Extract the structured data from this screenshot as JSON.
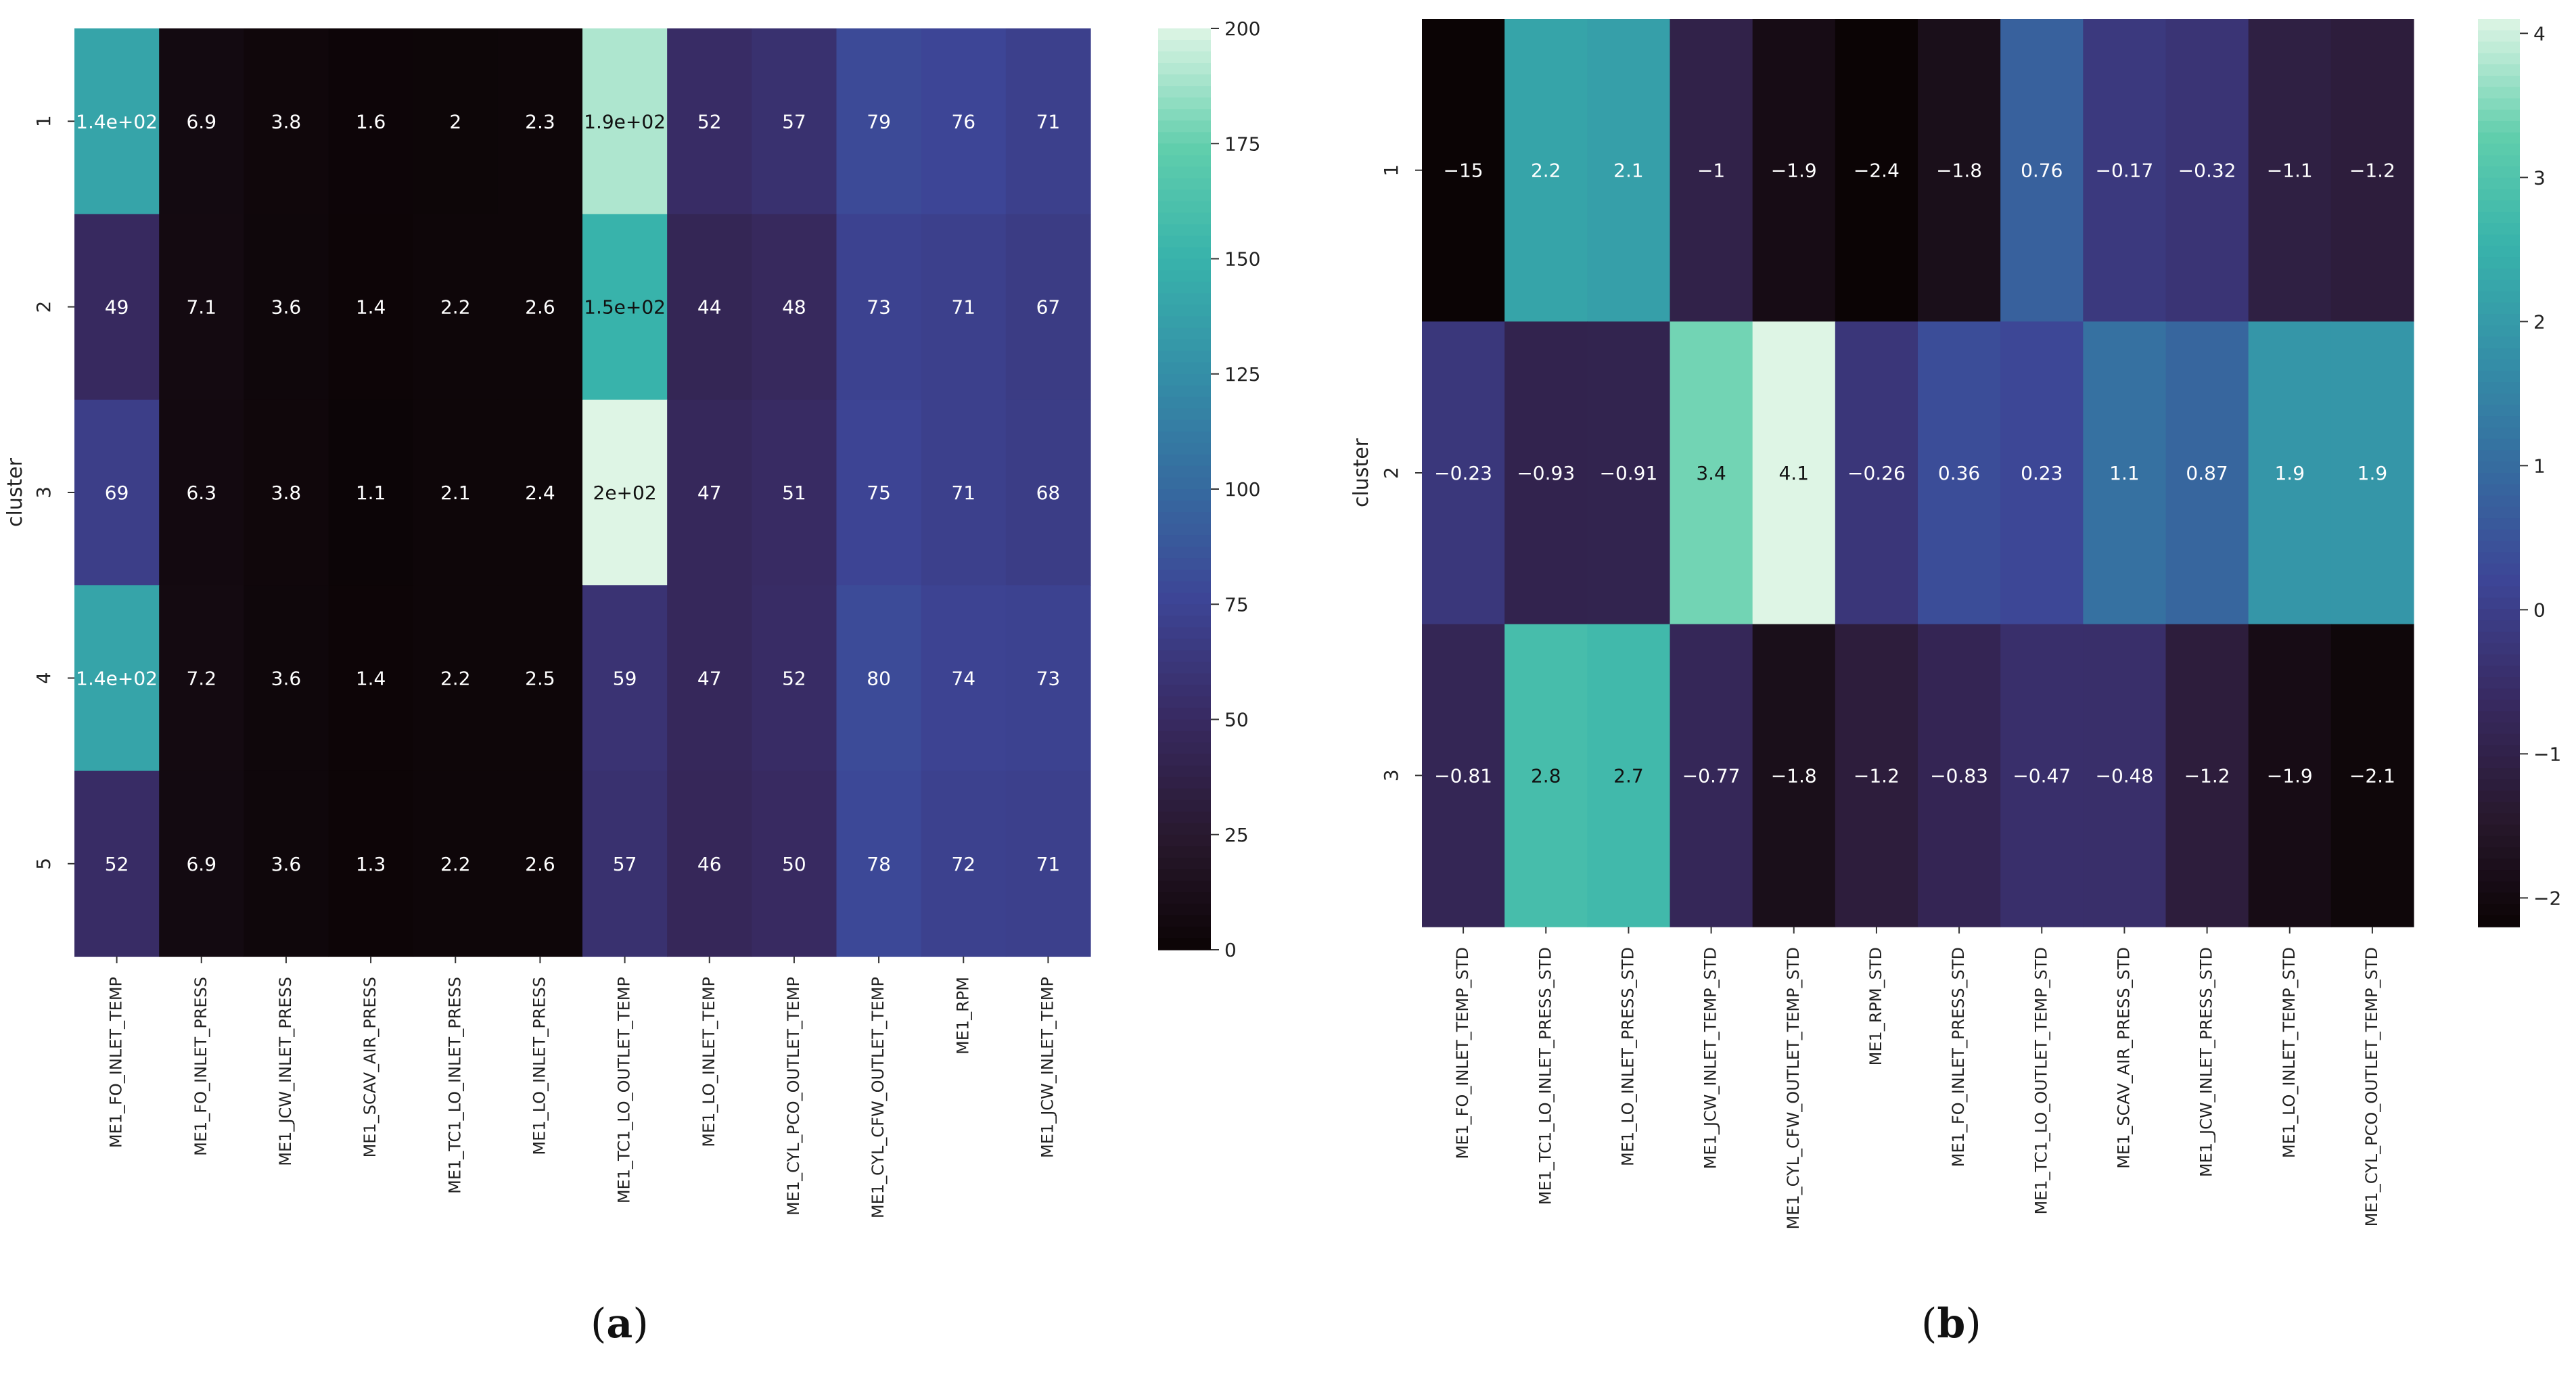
{
  "panels": {
    "a": {
      "open": "(",
      "letter": "a",
      "close": ")"
    },
    "b": {
      "open": "(",
      "letter": "b",
      "close": ")"
    }
  },
  "chart_data": [
    {
      "type": "heatmap",
      "ylabel": "cluster",
      "rows": [
        "1",
        "2",
        "3",
        "4",
        "5"
      ],
      "columns": [
        "ME1_FO_INLET_TEMP",
        "ME1_FO_INLET_PRESS",
        "ME1_JCW_INLET_PRESS",
        "ME1_SCAV_AIR_PRESS",
        "ME1_TC1_LO_INLET_PRESS",
        "ME1_LO_INLET_PRESS",
        "ME1_TC1_LO_OUTLET_TEMP",
        "ME1_LO_INLET_TEMP",
        "ME1_CYL_PCO_OUTLET_TEMP",
        "ME1_CYL_CFW_OUTLET_TEMP",
        "ME1_RPM",
        "ME1_JCW_INLET_TEMP"
      ],
      "values": [
        [
          140,
          6.9,
          3.8,
          1.6,
          2.0,
          2.3,
          190,
          52,
          57,
          79,
          76,
          71
        ],
        [
          49,
          7.1,
          3.6,
          1.4,
          2.2,
          2.6,
          150,
          44,
          48,
          73,
          71,
          67
        ],
        [
          69,
          6.3,
          3.8,
          1.1,
          2.1,
          2.4,
          200,
          47,
          51,
          75,
          71,
          68
        ],
        [
          140,
          7.2,
          3.6,
          1.4,
          2.2,
          2.5,
          59,
          47,
          52,
          80,
          74,
          73
        ],
        [
          52,
          6.9,
          3.6,
          1.3,
          2.2,
          2.6,
          57,
          46,
          50,
          78,
          72,
          71
        ]
      ],
      "annotations": [
        [
          "1.4e+02",
          "6.9",
          "3.8",
          "1.6",
          "2",
          "2.3",
          "1.9e+02",
          "52",
          "57",
          "79",
          "76",
          "71"
        ],
        [
          "49",
          "7.1",
          "3.6",
          "1.4",
          "2.2",
          "2.6",
          "1.5e+02",
          "44",
          "48",
          "73",
          "71",
          "67"
        ],
        [
          "69",
          "6.3",
          "3.8",
          "1.1",
          "2.1",
          "2.4",
          "2e+02",
          "47",
          "51",
          "75",
          "71",
          "68"
        ],
        [
          "1.4e+02",
          "7.2",
          "3.6",
          "1.4",
          "2.2",
          "2.5",
          "59",
          "47",
          "52",
          "80",
          "74",
          "73"
        ],
        [
          "52",
          "6.9",
          "3.6",
          "1.3",
          "2.2",
          "2.6",
          "57",
          "46",
          "50",
          "78",
          "72",
          "71"
        ]
      ],
      "colorbar": {
        "min": 0,
        "max": 200,
        "ticks": [
          "0",
          "25",
          "50",
          "75",
          "100",
          "125",
          "150",
          "175",
          "200"
        ]
      },
      "colormap": "mako"
    },
    {
      "type": "heatmap",
      "ylabel": "cluster",
      "rows": [
        "1",
        "2",
        "3"
      ],
      "columns": [
        "ME1_FO_INLET_TEMP_STD",
        "ME1_TC1_LO_INLET_PRESS_STD",
        "ME1_LO_INLET_PRESS_STD",
        "ME1_JCW_INLET_TEMP_STD",
        "ME1_CYL_CFW_OUTLET_TEMP_STD",
        "ME1_RPM_STD",
        "ME1_FO_INLET_PRESS_STD",
        "ME1_TC1_LO_OUTLET_TEMP_STD",
        "ME1_SCAV_AIR_PRESS_STD",
        "ME1_JCW_INLET_PRESS_STD",
        "ME1_LO_INLET_TEMP_STD",
        "ME1_CYL_PCO_OUTLET_TEMP_STD"
      ],
      "values": [
        [
          -15,
          2.2,
          2.1,
          -1,
          -1.9,
          -2.4,
          -1.8,
          0.76,
          -0.17,
          -0.32,
          -1.1,
          -1.2
        ],
        [
          -0.23,
          -0.93,
          -0.91,
          3.4,
          4.1,
          -0.26,
          0.36,
          0.23,
          1.1,
          0.87,
          1.9,
          1.9
        ],
        [
          -0.81,
          2.8,
          2.7,
          -0.77,
          -1.8,
          -1.2,
          -0.83,
          -0.47,
          -0.48,
          -1.2,
          -1.9,
          -2.1
        ]
      ],
      "annotations": [
        [
          "−15",
          "2.2",
          "2.1",
          "−1",
          "−1.9",
          "−2.4",
          "−1.8",
          "0.76",
          "−0.17",
          "−0.32",
          "−1.1",
          "−1.2"
        ],
        [
          "−0.23",
          "−0.93",
          "−0.91",
          "3.4",
          "4.1",
          "−0.26",
          "0.36",
          "0.23",
          "1.1",
          "0.87",
          "1.9",
          "1.9"
        ],
        [
          "−0.81",
          "2.8",
          "2.7",
          "−0.77",
          "−1.8",
          "−1.2",
          "−0.83",
          "−0.47",
          "−0.48",
          "−1.2",
          "−1.9",
          "−2.1"
        ]
      ],
      "colorbar": {
        "min": -2.2,
        "max": 4.1,
        "ticks": [
          "−2",
          "−1",
          "0",
          "1",
          "2",
          "3",
          "4"
        ],
        "tick_values": [
          -2,
          -1,
          0,
          1,
          2,
          3,
          4
        ]
      },
      "colormap": "mako"
    }
  ]
}
